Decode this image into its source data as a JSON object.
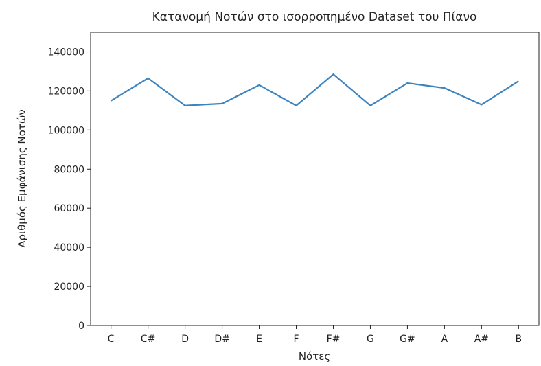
{
  "chart_data": {
    "type": "line",
    "title": "Κατανομή Νοτών στο ισορροπημένο Dataset του Πίανο",
    "x_label": "Νότες",
    "y_label": "Αριθμός Εμφάνισης Νοτών",
    "categories": [
      "C",
      "C#",
      "D",
      "D#",
      "E",
      "F",
      "F#",
      "G",
      "G#",
      "A",
      "A#",
      "B"
    ],
    "series": [
      {
        "color": "#3b84c0",
        "values": [
          115000,
          126500,
          112500,
          113500,
          123000,
          112500,
          128500,
          112500,
          124000,
          121500,
          113000,
          125000
        ]
      }
    ],
    "ylim": [
      0,
      150000
    ],
    "yticks": [
      0,
      20000,
      40000,
      60000,
      80000,
      100000,
      120000,
      140000
    ]
  }
}
